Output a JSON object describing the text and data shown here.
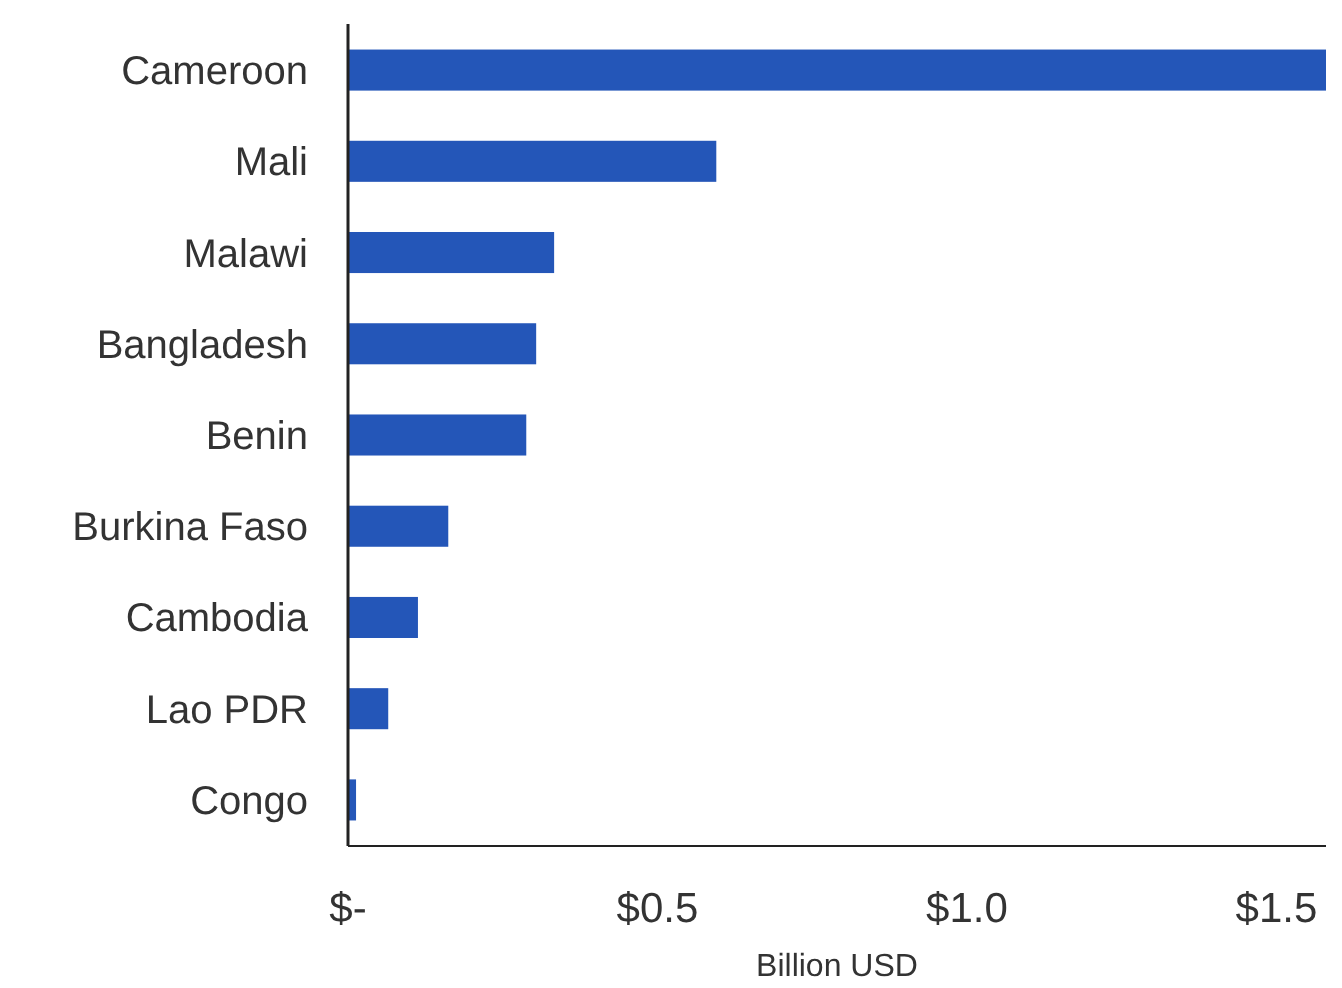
{
  "chart_data": {
    "type": "bar",
    "orientation": "horizontal",
    "xlabel": "Billion USD",
    "categories": [
      "Cameroon",
      "Mali",
      "Malawi",
      "Bangladesh",
      "Benin",
      "Burkina Faso",
      "Cambodia",
      "Lao PDR",
      "Congo"
    ],
    "values": [
      1.58,
      0.595,
      0.333,
      0.304,
      0.288,
      0.162,
      0.113,
      0.065,
      0.013
    ],
    "color": "#2456b8",
    "xlim": [
      0,
      1.58
    ],
    "xticks": [
      {
        "value": 0,
        "label": "$-"
      },
      {
        "value": 0.5,
        "label": "$0.5"
      },
      {
        "value": 1.0,
        "label": "$1.0"
      },
      {
        "value": 1.5,
        "label": "$1.5"
      }
    ],
    "grid": false
  }
}
